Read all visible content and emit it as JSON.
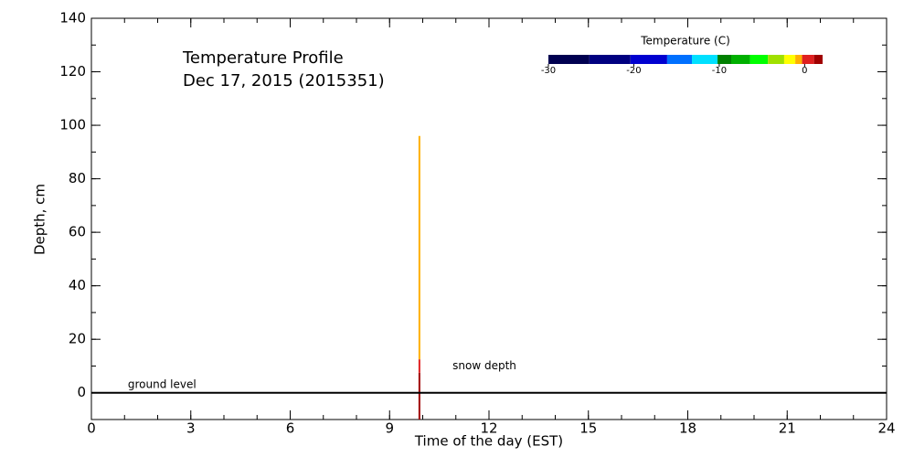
{
  "chart_data": {
    "type": "profile",
    "title": "Temperature Profile",
    "subtitle": "Dec 17, 2015 (2015351)",
    "xlabel": "Time of the day (EST)",
    "ylabel": "Depth, cm",
    "xlim": [
      0,
      24
    ],
    "ylim": [
      -10,
      140
    ],
    "xticks": [
      0,
      3,
      6,
      9,
      12,
      15,
      18,
      21,
      24
    ],
    "yticks": [
      0,
      20,
      40,
      60,
      80,
      100,
      120,
      140
    ],
    "x_minor_step": 1,
    "y_minor_step": 10,
    "reference_line": 0,
    "profiles": [
      {
        "x": 9.9,
        "depth_bins": [
          -10,
          7.5,
          12.5,
          96
        ],
        "temperatures": [
          1.5,
          0.5,
          -0.7
        ]
      }
    ],
    "annotations": [
      {
        "text": "ground level",
        "x": 1.1,
        "y": 3
      },
      {
        "text": "snow depth",
        "x": 10.9,
        "y": 10
      }
    ],
    "colorbar": {
      "label": "Temperature (C)",
      "lim": [
        -30,
        2.1
      ],
      "ticks": [
        -30,
        -20,
        -10,
        0
      ],
      "bins": [
        -30,
        -25.2,
        -20.4,
        -16.1,
        -13.2,
        -10.2,
        -8.6,
        -6.4,
        -4.3,
        -2.4,
        -1.1,
        -0.3,
        1.1,
        2.1
      ],
      "colors": [
        "#000050",
        "#000080",
        "#0000d0",
        "#0070ff",
        "#00e0ff",
        "#008000",
        "#00b000",
        "#00ff00",
        "#a0e000",
        "#ffff00",
        "#ffb000",
        "#e02020",
        "#a00000"
      ]
    }
  }
}
